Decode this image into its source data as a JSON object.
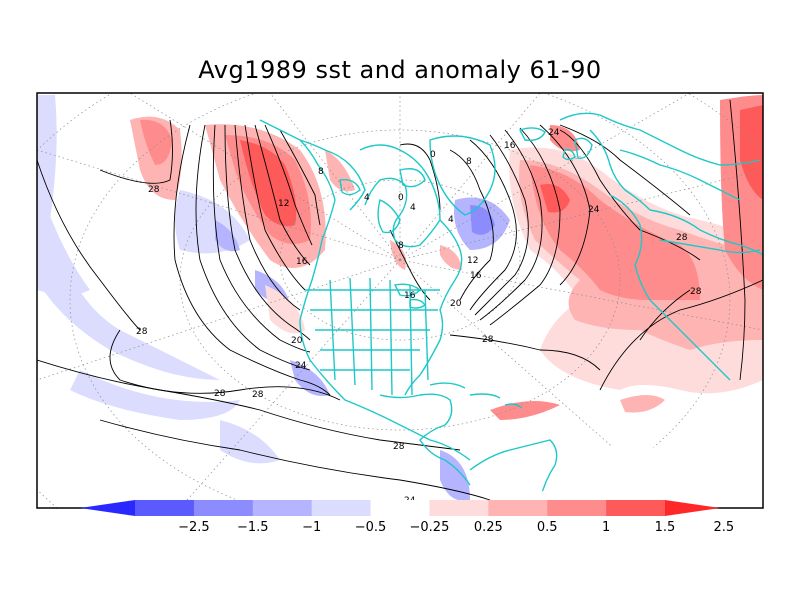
{
  "title": "Avg1989 sst and anomaly 61-90",
  "colors": {
    "frame": "#000000",
    "contour": "#000000",
    "coast": "#1ec8c8",
    "graticule": "#8c8c8c",
    "anom_pos_1": "#ffdcdc",
    "anom_pos_2": "#ffb4b4",
    "anom_pos_3": "#ff8c8c",
    "anom_pos_4": "#ff5a5a",
    "anom_pos_5": "#ff2828",
    "anom_neg_1": "#dcdcff",
    "anom_neg_2": "#b4b4ff",
    "anom_neg_3": "#8c8cff",
    "anom_neg_4": "#5a5aff",
    "anom_neg_5": "#2828ff"
  },
  "colorbar": {
    "boundaries": [
      "-2.5",
      "-1.5",
      "-1",
      "-0.5",
      "-0.25",
      "0.25",
      "0.5",
      "1",
      "1.5",
      "2.5"
    ],
    "fills": [
      "#2828ff",
      "#5a5aff",
      "#8c8cff",
      "#b4b4ff",
      "#dcdcff",
      "#ffffff",
      "#ffdcdc",
      "#ffb4b4",
      "#ff8c8c",
      "#ff5a5a",
      "#ff2828"
    ]
  },
  "contour_labels": [
    {
      "text": "28",
      "id": "c28-west"
    },
    {
      "text": "28",
      "id": "c28-sw"
    },
    {
      "text": "28",
      "id": "c28-south"
    },
    {
      "text": "28",
      "id": "c28-south2"
    },
    {
      "text": "28",
      "id": "c28-carib"
    },
    {
      "text": "28",
      "id": "c28-atl"
    },
    {
      "text": "28",
      "id": "c28-east"
    },
    {
      "text": "28",
      "id": "c28-med"
    },
    {
      "text": "24",
      "id": "c24-pac"
    },
    {
      "text": "24",
      "id": "c24-atl"
    },
    {
      "text": "24",
      "id": "c24-north"
    },
    {
      "text": "20",
      "id": "c20-pac"
    },
    {
      "text": "20",
      "id": "c20-atl"
    },
    {
      "text": "16",
      "id": "c16-pac"
    },
    {
      "text": "16",
      "id": "c16-atl"
    },
    {
      "text": "16",
      "id": "c16-lakes"
    },
    {
      "text": "16",
      "id": "c16-north"
    },
    {
      "text": "12",
      "id": "c12-pac"
    },
    {
      "text": "12",
      "id": "c12-atl"
    },
    {
      "text": "8",
      "id": "c8-alaska"
    },
    {
      "text": "8",
      "id": "c8-hudson"
    },
    {
      "text": "8",
      "id": "c8-green"
    },
    {
      "text": "4",
      "id": "c4-a"
    },
    {
      "text": "4",
      "id": "c4-b"
    },
    {
      "text": "4",
      "id": "c4-c"
    },
    {
      "text": "0",
      "id": "c0-a"
    },
    {
      "text": "0",
      "id": "c0-b"
    },
    {
      "text": "24",
      "id": "c24-bottom"
    }
  ]
}
